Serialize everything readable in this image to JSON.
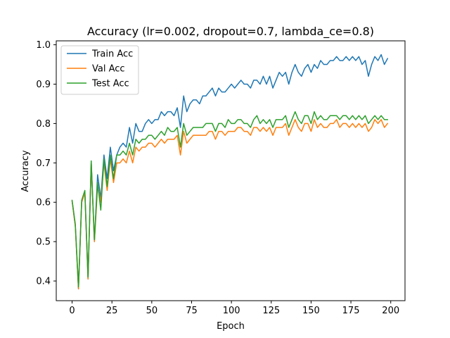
{
  "chart_data": {
    "type": "line",
    "title": "Accuracy (lr=0.002, dropout=0.7, lambda_ce=0.8)",
    "xlabel": "Epoch",
    "ylabel": "Accuracy",
    "xlim": [
      -9.95,
      208.95
    ],
    "ylim": [
      0.35,
      1.01
    ],
    "xticks": [
      0,
      25,
      50,
      75,
      100,
      125,
      150,
      175,
      200
    ],
    "yticks": [
      0.4,
      0.5,
      0.6,
      0.7,
      0.8,
      0.9,
      1.0
    ],
    "ytick_labels": [
      "0.4",
      "0.5",
      "0.6",
      "0.7",
      "0.8",
      "0.9",
      "1.0"
    ],
    "legend_position": "top-left",
    "grid": false,
    "series": [
      {
        "name": "Train Acc",
        "color": "#1f77b4",
        "points": [
          [
            0,
            0.603
          ],
          [
            2,
            0.54
          ],
          [
            4,
            0.38
          ],
          [
            6,
            0.6
          ],
          [
            8,
            0.625
          ],
          [
            10,
            0.405
          ],
          [
            12,
            0.7
          ],
          [
            14,
            0.5
          ],
          [
            16,
            0.67
          ],
          [
            18,
            0.61
          ],
          [
            20,
            0.72
          ],
          [
            22,
            0.66
          ],
          [
            24,
            0.74
          ],
          [
            26,
            0.68
          ],
          [
            28,
            0.72
          ],
          [
            30,
            0.74
          ],
          [
            32,
            0.75
          ],
          [
            34,
            0.74
          ],
          [
            36,
            0.79
          ],
          [
            38,
            0.75
          ],
          [
            40,
            0.8
          ],
          [
            42,
            0.78
          ],
          [
            44,
            0.78
          ],
          [
            46,
            0.8
          ],
          [
            48,
            0.81
          ],
          [
            50,
            0.8
          ],
          [
            52,
            0.81
          ],
          [
            54,
            0.81
          ],
          [
            56,
            0.83
          ],
          [
            58,
            0.82
          ],
          [
            60,
            0.83
          ],
          [
            62,
            0.83
          ],
          [
            64,
            0.82
          ],
          [
            66,
            0.84
          ],
          [
            68,
            0.79
          ],
          [
            70,
            0.87
          ],
          [
            72,
            0.83
          ],
          [
            74,
            0.85
          ],
          [
            76,
            0.86
          ],
          [
            78,
            0.86
          ],
          [
            80,
            0.85
          ],
          [
            82,
            0.87
          ],
          [
            84,
            0.87
          ],
          [
            86,
            0.88
          ],
          [
            88,
            0.89
          ],
          [
            90,
            0.87
          ],
          [
            92,
            0.89
          ],
          [
            94,
            0.88
          ],
          [
            96,
            0.88
          ],
          [
            98,
            0.89
          ],
          [
            100,
            0.9
          ],
          [
            102,
            0.89
          ],
          [
            104,
            0.9
          ],
          [
            106,
            0.91
          ],
          [
            108,
            0.9
          ],
          [
            110,
            0.9
          ],
          [
            112,
            0.89
          ],
          [
            114,
            0.91
          ],
          [
            116,
            0.91
          ],
          [
            118,
            0.9
          ],
          [
            120,
            0.92
          ],
          [
            122,
            0.9
          ],
          [
            124,
            0.92
          ],
          [
            126,
            0.89
          ],
          [
            128,
            0.91
          ],
          [
            130,
            0.93
          ],
          [
            132,
            0.92
          ],
          [
            134,
            0.93
          ],
          [
            136,
            0.9
          ],
          [
            138,
            0.93
          ],
          [
            140,
            0.95
          ],
          [
            142,
            0.93
          ],
          [
            144,
            0.92
          ],
          [
            146,
            0.94
          ],
          [
            148,
            0.95
          ],
          [
            150,
            0.93
          ],
          [
            152,
            0.95
          ],
          [
            154,
            0.94
          ],
          [
            156,
            0.96
          ],
          [
            158,
            0.95
          ],
          [
            160,
            0.95
          ],
          [
            162,
            0.96
          ],
          [
            164,
            0.96
          ],
          [
            166,
            0.97
          ],
          [
            168,
            0.96
          ],
          [
            170,
            0.96
          ],
          [
            172,
            0.97
          ],
          [
            174,
            0.96
          ],
          [
            176,
            0.97
          ],
          [
            178,
            0.96
          ],
          [
            180,
            0.97
          ],
          [
            182,
            0.95
          ],
          [
            184,
            0.96
          ],
          [
            186,
            0.92
          ],
          [
            188,
            0.95
          ],
          [
            190,
            0.97
          ],
          [
            192,
            0.96
          ],
          [
            194,
            0.975
          ],
          [
            196,
            0.95
          ],
          [
            198,
            0.965
          ]
        ]
      },
      {
        "name": "Val Acc",
        "color": "#ff7f0e",
        "points": [
          [
            0,
            0.603
          ],
          [
            2,
            0.54
          ],
          [
            4,
            0.38
          ],
          [
            6,
            0.6
          ],
          [
            8,
            0.625
          ],
          [
            10,
            0.405
          ],
          [
            12,
            0.7
          ],
          [
            14,
            0.5
          ],
          [
            16,
            0.64
          ],
          [
            18,
            0.6
          ],
          [
            20,
            0.7
          ],
          [
            22,
            0.63
          ],
          [
            24,
            0.71
          ],
          [
            26,
            0.65
          ],
          [
            28,
            0.7
          ],
          [
            30,
            0.7
          ],
          [
            32,
            0.71
          ],
          [
            34,
            0.7
          ],
          [
            36,
            0.73
          ],
          [
            38,
            0.7
          ],
          [
            40,
            0.74
          ],
          [
            42,
            0.73
          ],
          [
            44,
            0.74
          ],
          [
            46,
            0.74
          ],
          [
            48,
            0.75
          ],
          [
            50,
            0.75
          ],
          [
            52,
            0.74
          ],
          [
            54,
            0.75
          ],
          [
            56,
            0.76
          ],
          [
            58,
            0.75
          ],
          [
            60,
            0.76
          ],
          [
            62,
            0.76
          ],
          [
            64,
            0.76
          ],
          [
            66,
            0.77
          ],
          [
            68,
            0.72
          ],
          [
            70,
            0.78
          ],
          [
            72,
            0.75
          ],
          [
            74,
            0.76
          ],
          [
            76,
            0.77
          ],
          [
            78,
            0.77
          ],
          [
            80,
            0.77
          ],
          [
            82,
            0.77
          ],
          [
            84,
            0.77
          ],
          [
            86,
            0.78
          ],
          [
            88,
            0.78
          ],
          [
            90,
            0.76
          ],
          [
            92,
            0.78
          ],
          [
            94,
            0.78
          ],
          [
            96,
            0.77
          ],
          [
            98,
            0.78
          ],
          [
            100,
            0.78
          ],
          [
            102,
            0.78
          ],
          [
            104,
            0.79
          ],
          [
            106,
            0.79
          ],
          [
            108,
            0.78
          ],
          [
            110,
            0.78
          ],
          [
            112,
            0.77
          ],
          [
            114,
            0.79
          ],
          [
            116,
            0.79
          ],
          [
            118,
            0.78
          ],
          [
            120,
            0.79
          ],
          [
            122,
            0.78
          ],
          [
            124,
            0.79
          ],
          [
            126,
            0.77
          ],
          [
            128,
            0.79
          ],
          [
            130,
            0.79
          ],
          [
            132,
            0.79
          ],
          [
            134,
            0.8
          ],
          [
            136,
            0.77
          ],
          [
            138,
            0.79
          ],
          [
            140,
            0.81
          ],
          [
            142,
            0.79
          ],
          [
            144,
            0.78
          ],
          [
            146,
            0.8
          ],
          [
            148,
            0.8
          ],
          [
            150,
            0.78
          ],
          [
            152,
            0.81
          ],
          [
            154,
            0.79
          ],
          [
            156,
            0.8
          ],
          [
            158,
            0.79
          ],
          [
            160,
            0.79
          ],
          [
            162,
            0.8
          ],
          [
            164,
            0.8
          ],
          [
            166,
            0.81
          ],
          [
            168,
            0.79
          ],
          [
            170,
            0.8
          ],
          [
            172,
            0.8
          ],
          [
            174,
            0.79
          ],
          [
            176,
            0.8
          ],
          [
            178,
            0.79
          ],
          [
            180,
            0.8
          ],
          [
            182,
            0.79
          ],
          [
            184,
            0.8
          ],
          [
            186,
            0.78
          ],
          [
            188,
            0.79
          ],
          [
            190,
            0.81
          ],
          [
            192,
            0.8
          ],
          [
            194,
            0.81
          ],
          [
            196,
            0.79
          ],
          [
            198,
            0.8
          ]
        ]
      },
      {
        "name": "Test Acc",
        "color": "#2ca02c",
        "points": [
          [
            0,
            0.605
          ],
          [
            2,
            0.545
          ],
          [
            4,
            0.385
          ],
          [
            6,
            0.605
          ],
          [
            8,
            0.63
          ],
          [
            10,
            0.41
          ],
          [
            12,
            0.705
          ],
          [
            14,
            0.505
          ],
          [
            16,
            0.65
          ],
          [
            18,
            0.58
          ],
          [
            20,
            0.71
          ],
          [
            22,
            0.64
          ],
          [
            24,
            0.72
          ],
          [
            26,
            0.66
          ],
          [
            28,
            0.72
          ],
          [
            30,
            0.72
          ],
          [
            32,
            0.73
          ],
          [
            34,
            0.72
          ],
          [
            36,
            0.75
          ],
          [
            38,
            0.72
          ],
          [
            40,
            0.76
          ],
          [
            42,
            0.75
          ],
          [
            44,
            0.76
          ],
          [
            46,
            0.76
          ],
          [
            48,
            0.77
          ],
          [
            50,
            0.77
          ],
          [
            52,
            0.76
          ],
          [
            54,
            0.77
          ],
          [
            56,
            0.78
          ],
          [
            58,
            0.77
          ],
          [
            60,
            0.79
          ],
          [
            62,
            0.78
          ],
          [
            64,
            0.78
          ],
          [
            66,
            0.79
          ],
          [
            68,
            0.74
          ],
          [
            70,
            0.8
          ],
          [
            72,
            0.77
          ],
          [
            74,
            0.78
          ],
          [
            76,
            0.79
          ],
          [
            78,
            0.79
          ],
          [
            80,
            0.79
          ],
          [
            82,
            0.79
          ],
          [
            84,
            0.8
          ],
          [
            86,
            0.8
          ],
          [
            88,
            0.8
          ],
          [
            90,
            0.78
          ],
          [
            92,
            0.8
          ],
          [
            94,
            0.8
          ],
          [
            96,
            0.79
          ],
          [
            98,
            0.81
          ],
          [
            100,
            0.8
          ],
          [
            102,
            0.8
          ],
          [
            104,
            0.81
          ],
          [
            106,
            0.81
          ],
          [
            108,
            0.8
          ],
          [
            110,
            0.8
          ],
          [
            112,
            0.79
          ],
          [
            114,
            0.81
          ],
          [
            116,
            0.82
          ],
          [
            118,
            0.8
          ],
          [
            120,
            0.81
          ],
          [
            122,
            0.8
          ],
          [
            124,
            0.81
          ],
          [
            126,
            0.79
          ],
          [
            128,
            0.81
          ],
          [
            130,
            0.81
          ],
          [
            132,
            0.81
          ],
          [
            134,
            0.82
          ],
          [
            136,
            0.79
          ],
          [
            138,
            0.81
          ],
          [
            140,
            0.83
          ],
          [
            142,
            0.81
          ],
          [
            144,
            0.8
          ],
          [
            146,
            0.82
          ],
          [
            148,
            0.82
          ],
          [
            150,
            0.8
          ],
          [
            152,
            0.83
          ],
          [
            154,
            0.81
          ],
          [
            156,
            0.82
          ],
          [
            158,
            0.81
          ],
          [
            160,
            0.81
          ],
          [
            162,
            0.82
          ],
          [
            164,
            0.82
          ],
          [
            166,
            0.82
          ],
          [
            168,
            0.81
          ],
          [
            170,
            0.82
          ],
          [
            172,
            0.82
          ],
          [
            174,
            0.81
          ],
          [
            176,
            0.82
          ],
          [
            178,
            0.81
          ],
          [
            180,
            0.82
          ],
          [
            182,
            0.81
          ],
          [
            184,
            0.82
          ],
          [
            186,
            0.8
          ],
          [
            188,
            0.81
          ],
          [
            190,
            0.82
          ],
          [
            192,
            0.81
          ],
          [
            194,
            0.82
          ],
          [
            196,
            0.81
          ],
          [
            198,
            0.81
          ]
        ]
      }
    ]
  }
}
